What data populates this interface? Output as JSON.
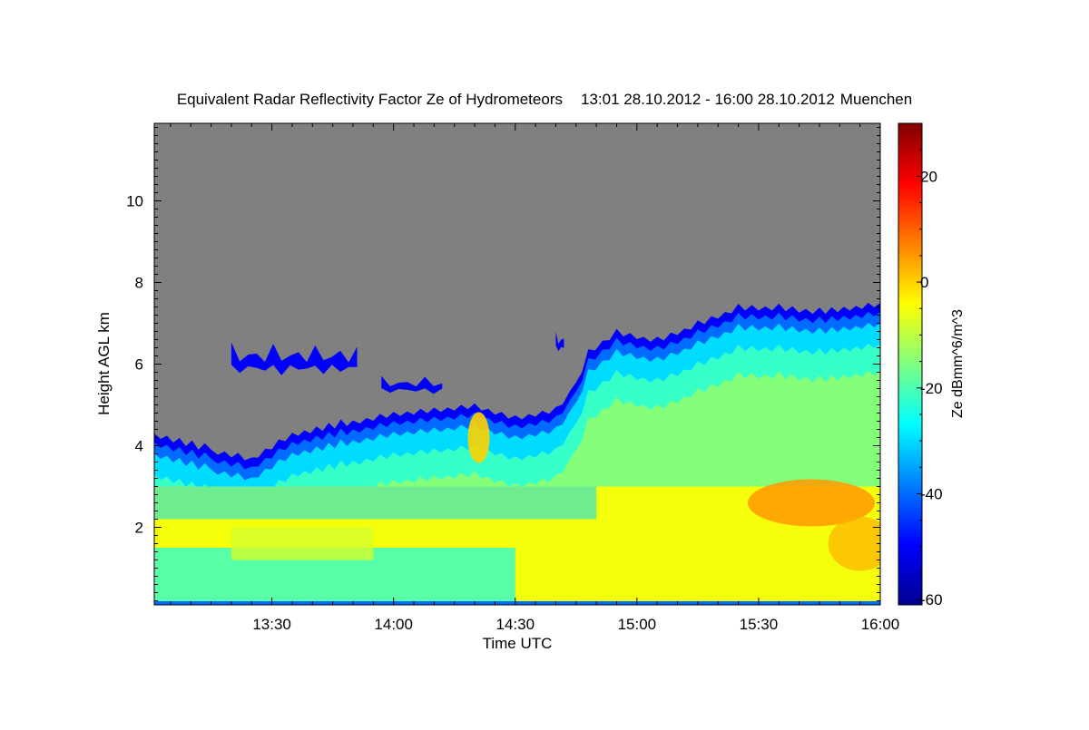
{
  "chart_data": {
    "type": "heatmap",
    "title": "Equivalent Radar Reflectivity Factor Ze of Hydrometeors",
    "period": "13:01 28.10.2012 - 16:00 28.10.2012",
    "location": "Muenchen",
    "xlabel": "Time UTC",
    "ylabel": "Height AGL km",
    "x_range": [
      "13:01",
      "16:00"
    ],
    "x_ticks": [
      "13:30",
      "14:00",
      "14:30",
      "15:00",
      "15:30",
      "16:00"
    ],
    "ylim": [
      0.1,
      11.9
    ],
    "y_ticks": [
      2,
      4,
      6,
      8,
      10
    ],
    "colorbar": {
      "label": "Ze dBmm^6/m^3",
      "range": [
        -61,
        30
      ],
      "ticks": [
        -60,
        -40,
        -20,
        0,
        20
      ],
      "colormap": "jet"
    },
    "no_signal_color": "#808080",
    "cloud_top_km": [
      [
        "13:01",
        4.3
      ],
      [
        "13:15",
        3.9
      ],
      [
        "13:25",
        3.7
      ],
      [
        "13:35",
        4.3
      ],
      [
        "13:50",
        4.6
      ],
      [
        "14:00",
        4.8
      ],
      [
        "14:10",
        4.9
      ],
      [
        "14:20",
        5.0
      ],
      [
        "14:30",
        4.7
      ],
      [
        "14:40",
        4.9
      ],
      [
        "14:45",
        5.5
      ],
      [
        "14:48",
        6.3
      ],
      [
        "14:55",
        6.8
      ],
      [
        "15:05",
        6.6
      ],
      [
        "15:15",
        7.0
      ],
      [
        "15:25",
        7.4
      ],
      [
        "15:35",
        7.4
      ],
      [
        "15:45",
        7.3
      ],
      [
        "16:00",
        7.5
      ]
    ],
    "cloud_patches": [
      {
        "start": "13:20",
        "end": "13:51",
        "base_km": 5.6,
        "top_km": 6.7
      },
      {
        "start": "13:57",
        "end": "14:12",
        "base_km": 5.2,
        "top_km": 5.8
      },
      {
        "start": "14:40",
        "end": "14:42",
        "base_km": 6.2,
        "top_km": 6.9
      }
    ],
    "reflectivity_zones_dBZ": [
      {
        "region": "cloud top edge",
        "value": -50
      },
      {
        "region": "upper cloud",
        "value": -30
      },
      {
        "region": "mid cloud",
        "value": -15
      },
      {
        "region": "lower layer",
        "value": -5
      },
      {
        "region": "near surface",
        "value": -25
      },
      {
        "region": "convective cell 14:21",
        "value": 0
      },
      {
        "region": "max 15:35-16:00 at 2-3 km",
        "value": 5
      }
    ]
  }
}
